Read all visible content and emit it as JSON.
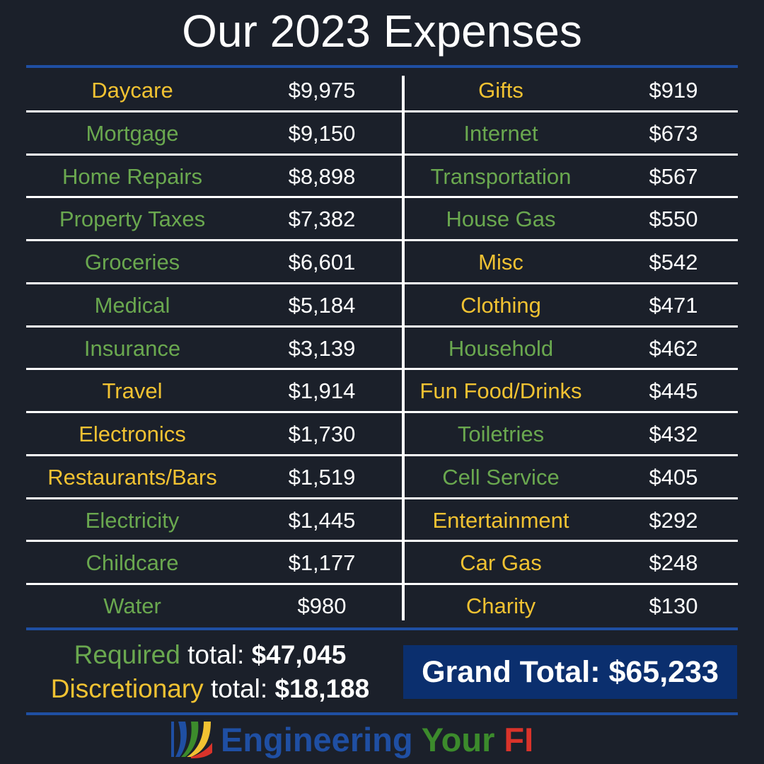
{
  "title": "Our 2023 Expenses",
  "rows": [
    {
      "left_name": "Daycare",
      "left_type": "disc",
      "left_amount": "$9,975",
      "right_name": "Gifts",
      "right_type": "disc",
      "right_amount": "$919"
    },
    {
      "left_name": "Mortgage",
      "left_type": "req",
      "left_amount": "$9,150",
      "right_name": "Internet",
      "right_type": "req",
      "right_amount": "$673"
    },
    {
      "left_name": "Home Repairs",
      "left_type": "req",
      "left_amount": "$8,898",
      "right_name": "Transportation",
      "right_type": "req",
      "right_amount": "$567"
    },
    {
      "left_name": "Property Taxes",
      "left_type": "req",
      "left_amount": "$7,382",
      "right_name": "House Gas",
      "right_type": "req",
      "right_amount": "$550"
    },
    {
      "left_name": "Groceries",
      "left_type": "req",
      "left_amount": "$6,601",
      "right_name": "Misc",
      "right_type": "disc",
      "right_amount": "$542"
    },
    {
      "left_name": "Medical",
      "left_type": "req",
      "left_amount": "$5,184",
      "right_name": "Clothing",
      "right_type": "disc",
      "right_amount": "$471"
    },
    {
      "left_name": "Insurance",
      "left_type": "req",
      "left_amount": "$3,139",
      "right_name": "Household",
      "right_type": "req",
      "right_amount": "$462"
    },
    {
      "left_name": "Travel",
      "left_type": "disc",
      "left_amount": "$1,914",
      "right_name": "Fun Food/Drinks",
      "right_type": "disc",
      "right_amount": "$445"
    },
    {
      "left_name": "Electronics",
      "left_type": "disc",
      "left_amount": "$1,730",
      "right_name": "Toiletries",
      "right_type": "req",
      "right_amount": "$432"
    },
    {
      "left_name": "Restaurants/Bars",
      "left_type": "disc",
      "left_amount": "$1,519",
      "right_name": "Cell Service",
      "right_type": "req",
      "right_amount": "$405"
    },
    {
      "left_name": "Electricity",
      "left_type": "req",
      "left_amount": "$1,445",
      "right_name": "Entertainment",
      "right_type": "disc",
      "right_amount": "$292"
    },
    {
      "left_name": "Childcare",
      "left_type": "req",
      "left_amount": "$1,177",
      "right_name": "Car Gas",
      "right_type": "disc",
      "right_amount": "$248"
    },
    {
      "left_name": "Water",
      "left_type": "req",
      "left_amount": "$980",
      "right_name": "Charity",
      "right_type": "disc",
      "right_amount": "$130"
    }
  ],
  "totals": {
    "required_label": "Required",
    "required_suffix": " total: ",
    "required_value": "$47,045",
    "discretionary_label": "Discretionary",
    "discretionary_suffix": " total: ",
    "discretionary_value": "$18,188"
  },
  "grand_total": "Grand Total: $65,233",
  "brand": {
    "part1": "Engineering",
    "part2": " Your",
    "part3": " FI"
  },
  "colors": {
    "required": "#6aa84f",
    "discretionary": "#f1c232",
    "brand_blue": "#1f4fa3",
    "brand_green": "#3c8b2c",
    "brand_red": "#d9332a"
  }
}
